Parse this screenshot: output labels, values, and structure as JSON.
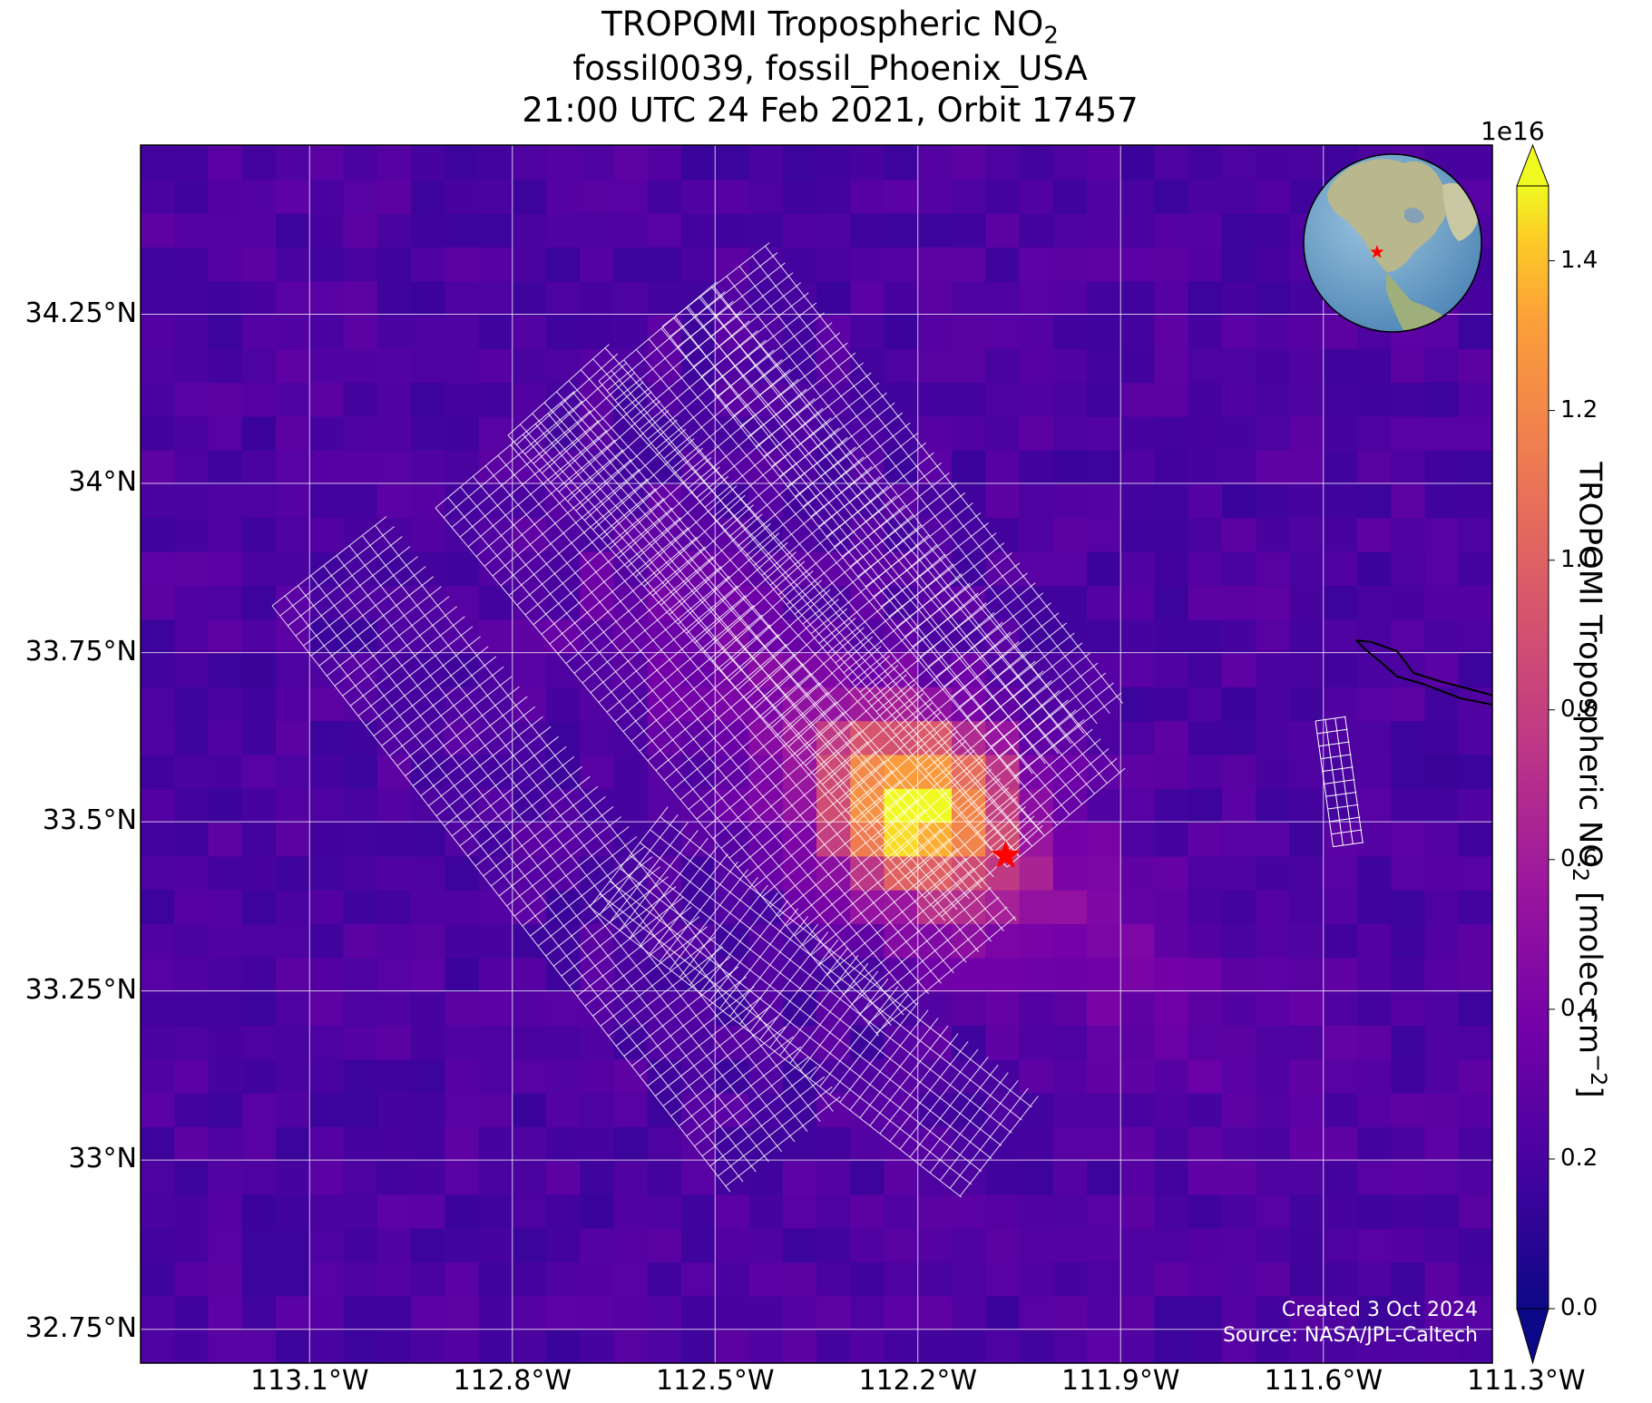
{
  "title": {
    "line1_main": "TROPOMI Tropospheric NO",
    "line1_sub": "2",
    "line2": "fossil0039, fossil_Phoenix_USA",
    "line3": "21:00 UTC 24 Feb 2021, Orbit 17457"
  },
  "map": {
    "lon_range": [
      -113.35,
      -111.35
    ],
    "lat_range": [
      32.7,
      34.5
    ],
    "lon_ticks": [
      {
        "value": -113.1,
        "label": "113.1°W"
      },
      {
        "value": -112.8,
        "label": "112.8°W"
      },
      {
        "value": -112.5,
        "label": "112.5°W"
      },
      {
        "value": -112.2,
        "label": "112.2°W"
      },
      {
        "value": -111.9,
        "label": "111.9°W"
      },
      {
        "value": -111.6,
        "label": "111.6°W"
      },
      {
        "value": -111.3,
        "label": "111.3°W"
      }
    ],
    "lat_ticks": [
      {
        "value": 34.25,
        "label": "34.25°N"
      },
      {
        "value": 34.0,
        "label": "34°N"
      },
      {
        "value": 33.75,
        "label": "33.75°N"
      },
      {
        "value": 33.5,
        "label": "33.5°N"
      },
      {
        "value": 33.25,
        "label": "33.25°N"
      },
      {
        "value": 33.0,
        "label": "33°N"
      },
      {
        "value": 32.75,
        "label": "32.75°N"
      }
    ],
    "target": {
      "lon": -112.07,
      "lat": 33.45,
      "marker": "star",
      "color": "#ff0000"
    },
    "plume_center": {
      "lon": -112.2,
      "lat": 33.52
    },
    "grid": true,
    "colormap": "plasma",
    "inset_globe": {
      "center_lon": -100,
      "center_lat": 40,
      "marker_color": "#ff0000",
      "placement": "top-right"
    }
  },
  "colorbar": {
    "label_main": "TROPOMI Tropospheric NO",
    "label_sub": "2",
    "label_units": " [molec cm",
    "label_sup": "−2",
    "label_end": "]",
    "offset_text": "1e16",
    "range": [
      0.0,
      1.5
    ],
    "extend": "both",
    "ticks": [
      {
        "value": 0.0,
        "label": "0.0"
      },
      {
        "value": 0.2,
        "label": "0.2"
      },
      {
        "value": 0.4,
        "label": "0.4"
      },
      {
        "value": 0.6,
        "label": "0.6"
      },
      {
        "value": 0.8,
        "label": "0.8"
      },
      {
        "value": 1.0,
        "label": "1.0"
      },
      {
        "value": 1.2,
        "label": "1.2"
      },
      {
        "value": 1.4,
        "label": "1.4"
      }
    ]
  },
  "credits": {
    "created": "Created 3 Oct 2024",
    "source": "Source: NASA/JPL-Caltech"
  }
}
